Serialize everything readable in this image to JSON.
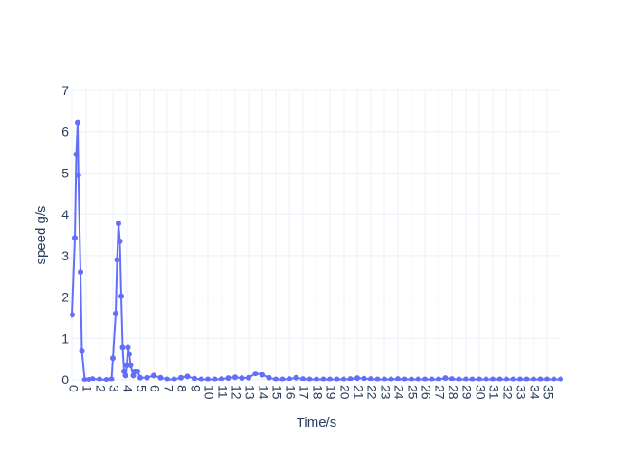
{
  "chart_data": {
    "type": "line",
    "x_label": "Time/s",
    "y_label": "speed g/s",
    "x": [
      0,
      0.2,
      0.3,
      0.4,
      0.45,
      0.6,
      0.7,
      0.9,
      1.2,
      1.5,
      2,
      2.5,
      2.9,
      3.0,
      3.2,
      3.3,
      3.4,
      3.5,
      3.6,
      3.7,
      3.8,
      3.9,
      4.0,
      4.1,
      4.2,
      4.3,
      4.5,
      4.6,
      4.8,
      5.0,
      5.5,
      6,
      6.5,
      7,
      7.5,
      8,
      8.5,
      9,
      9.5,
      10,
      10.5,
      11,
      11.5,
      12,
      12.5,
      13,
      13.5,
      14,
      14.5,
      15,
      15.5,
      16,
      16.5,
      17,
      17.5,
      18,
      18.5,
      19,
      19.5,
      20,
      20.5,
      21,
      21.5,
      22,
      22.5,
      23,
      23.5,
      24,
      24.5,
      25,
      25.5,
      26,
      26.5,
      27,
      27.5,
      28,
      28.5,
      29,
      29.5,
      30,
      30.5,
      31,
      31.5,
      32,
      32.5,
      33,
      33.5,
      34,
      34.5,
      35,
      35.5,
      36
    ],
    "series": [
      {
        "color": "#636efa",
        "values": [
          1.57,
          3.43,
          5.45,
          6.22,
          4.95,
          2.6,
          0.7,
          0,
          0,
          0.02,
          0.01,
          0,
          0.01,
          0.52,
          1.6,
          2.9,
          3.78,
          3.35,
          2.02,
          0.78,
          0.2,
          0.1,
          0.35,
          0.78,
          0.62,
          0.35,
          0.1,
          0.2,
          0.2,
          0.05,
          0.05,
          0.1,
          0.05,
          0.01,
          0.01,
          0.05,
          0.08,
          0.03,
          0.01,
          0.01,
          0.01,
          0.02,
          0.04,
          0.06,
          0.04,
          0.05,
          0.15,
          0.12,
          0.05,
          0.01,
          0.01,
          0.02,
          0.05,
          0.02,
          0.01,
          0.01,
          0.01,
          0.01,
          0.01,
          0.01,
          0.02,
          0.04,
          0.03,
          0.02,
          0.01,
          0.01,
          0.01,
          0.02,
          0.01,
          0.01,
          0.01,
          0.01,
          0.01,
          0.01,
          0.04,
          0.02,
          0.01,
          0.01,
          0.01,
          0.01,
          0.01,
          0.01,
          0.01,
          0.01,
          0.01,
          0.01,
          0.01,
          0.01,
          0.01,
          0.01,
          0.01,
          0.01
        ]
      }
    ],
    "xlim": [
      0,
      36
    ],
    "ylim": [
      0,
      7
    ],
    "xticks": [
      0,
      1,
      2,
      3,
      4,
      5,
      6,
      7,
      8,
      9,
      10,
      11,
      12,
      13,
      14,
      15,
      16,
      17,
      18,
      19,
      20,
      21,
      22,
      23,
      24,
      25,
      26,
      27,
      28,
      29,
      30,
      31,
      32,
      33,
      34,
      35
    ],
    "yticks": [
      0,
      1,
      2,
      3,
      4,
      5,
      6,
      7
    ],
    "grid": true
  }
}
